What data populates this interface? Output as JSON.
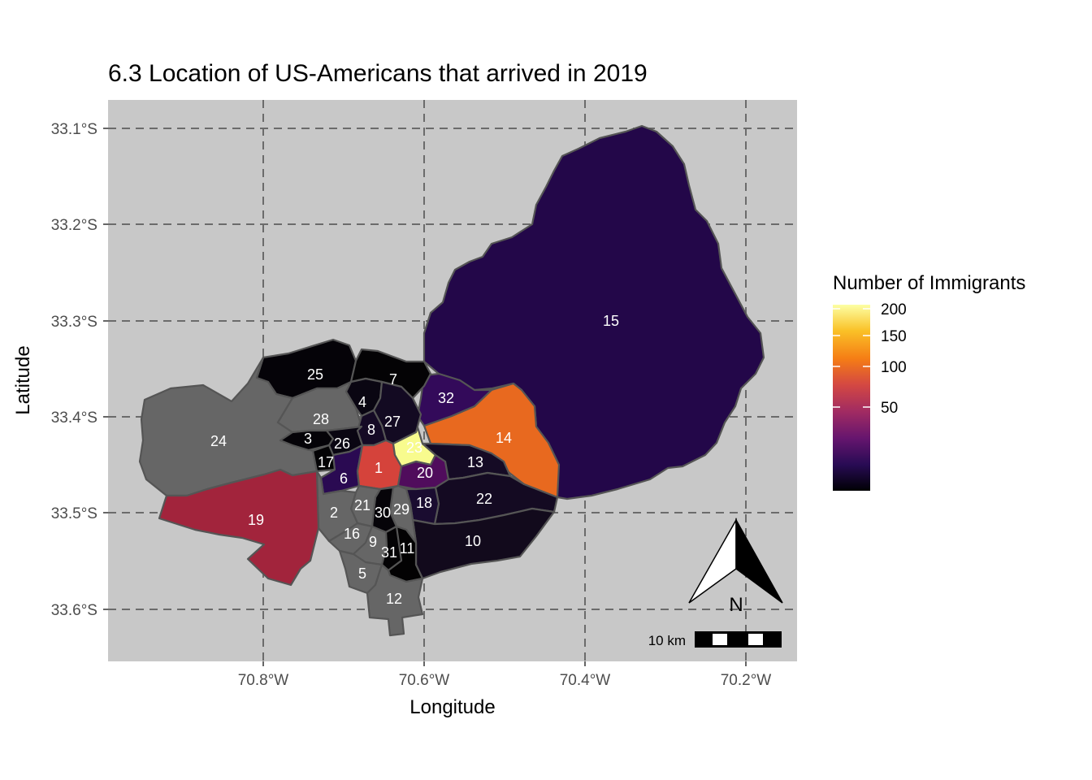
{
  "title": "6.3 Location of US-Americans that arrived in 2019",
  "x_axis": {
    "title": "Longitude",
    "ticks": [
      "70.8°W",
      "70.6°W",
      "70.4°W",
      "70.2°W"
    ]
  },
  "y_axis": {
    "title": "Latitude",
    "ticks": [
      "33.1°S",
      "33.2°S",
      "33.3°S",
      "33.4°S",
      "33.5°S",
      "33.6°S"
    ]
  },
  "legend": {
    "title": "Number of Immigrants",
    "ticks": [
      "200",
      "150",
      "100",
      "50"
    ],
    "colors": [
      "#000004",
      "#280b54",
      "#65156e",
      "#9f2a63",
      "#d44842",
      "#f57d15",
      "#fac127",
      "#fcffa4"
    ],
    "no_data_color": "#666666",
    "scale": "sqrt",
    "tick_values": [
      50,
      100,
      150,
      200
    ]
  },
  "scalebar": {
    "label": "10 km"
  },
  "north_arrow": {
    "label": "N"
  },
  "panel": {
    "background": "#c8c8c8",
    "grid": "dashed"
  },
  "regions": [
    {
      "id": "1",
      "color": "#d5433b"
    },
    {
      "id": "2",
      "color": "#666666"
    },
    {
      "id": "3",
      "color": "#050308"
    },
    {
      "id": "4",
      "color": "#0a0612"
    },
    {
      "id": "5",
      "color": "#666666"
    },
    {
      "id": "6",
      "color": "#2a0a52"
    },
    {
      "id": "7",
      "color": "#040305"
    },
    {
      "id": "8",
      "color": "#150a25"
    },
    {
      "id": "9",
      "color": "#666666"
    },
    {
      "id": "10",
      "color": "#120a1c"
    },
    {
      "id": "11",
      "color": "#030203"
    },
    {
      "id": "12",
      "color": "#666666"
    },
    {
      "id": "13",
      "color": "#150b25"
    },
    {
      "id": "14",
      "color": "#e8691f"
    },
    {
      "id": "15",
      "color": "#230749"
    },
    {
      "id": "16",
      "color": "#666666"
    },
    {
      "id": "17",
      "color": "#040305"
    },
    {
      "id": "18",
      "color": "#1a0c30"
    },
    {
      "id": "19",
      "color": "#a2243c"
    },
    {
      "id": "20",
      "color": "#500c5c"
    },
    {
      "id": "21",
      "color": "#666666"
    },
    {
      "id": "22",
      "color": "#140a22"
    },
    {
      "id": "23",
      "color": "#f8fb8e"
    },
    {
      "id": "24",
      "color": "#666666"
    },
    {
      "id": "25",
      "color": "#050308"
    },
    {
      "id": "26",
      "color": "#0a0612"
    },
    {
      "id": "27",
      "color": "#130a22"
    },
    {
      "id": "28",
      "color": "#666666"
    },
    {
      "id": "29",
      "color": "#666666"
    },
    {
      "id": "30",
      "color": "#060409"
    },
    {
      "id": "31",
      "color": "#040305"
    },
    {
      "id": "32",
      "color": "#330a5a"
    }
  ]
}
